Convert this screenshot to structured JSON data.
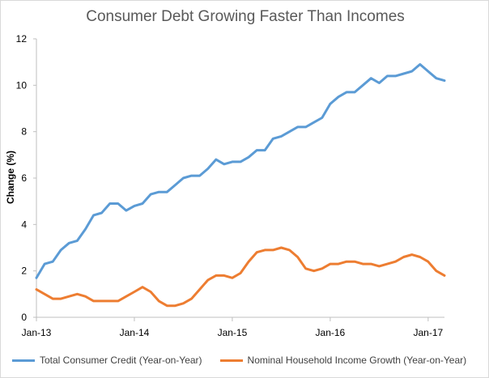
{
  "colors": {
    "credit": "#5b9bd5",
    "income": "#ed7d31",
    "axis": "#bfbfbf",
    "tick_text": "#000000"
  },
  "chart_data": {
    "type": "line",
    "title": "Consumer Debt Growing Faster Than Incomes",
    "xlabel": "",
    "ylabel": "Change (%)",
    "ylim": [
      0,
      12
    ],
    "y_ticks": [
      0,
      2,
      4,
      6,
      8,
      10,
      12
    ],
    "grid": false,
    "legend_position": "bottom",
    "x_start": "2013-01",
    "x_end": "2017-03",
    "x": [
      "2013-01",
      "2013-02",
      "2013-03",
      "2013-04",
      "2013-05",
      "2013-06",
      "2013-07",
      "2013-08",
      "2013-09",
      "2013-10",
      "2013-11",
      "2013-12",
      "2014-01",
      "2014-02",
      "2014-03",
      "2014-04",
      "2014-05",
      "2014-06",
      "2014-07",
      "2014-08",
      "2014-09",
      "2014-10",
      "2014-11",
      "2014-12",
      "2015-01",
      "2015-02",
      "2015-03",
      "2015-04",
      "2015-05",
      "2015-06",
      "2015-07",
      "2015-08",
      "2015-09",
      "2015-10",
      "2015-11",
      "2015-12",
      "2016-01",
      "2016-02",
      "2016-03",
      "2016-04",
      "2016-05",
      "2016-06",
      "2016-07",
      "2016-08",
      "2016-09",
      "2016-10",
      "2016-11",
      "2016-12",
      "2017-01",
      "2017-02",
      "2017-03"
    ],
    "x_tick_labels": [
      {
        "x": "2013-01",
        "label": "Jan-13"
      },
      {
        "x": "2014-01",
        "label": "Jan-14"
      },
      {
        "x": "2015-01",
        "label": "Jan-15"
      },
      {
        "x": "2016-01",
        "label": "Jan-16"
      },
      {
        "x": "2017-01",
        "label": "Jan-17"
      }
    ],
    "series": [
      {
        "name": "Total Consumer Credit (Year-on-Year)",
        "values": [
          1.7,
          2.3,
          2.4,
          2.9,
          3.2,
          3.3,
          3.8,
          4.4,
          4.5,
          4.9,
          4.9,
          4.6,
          4.8,
          4.9,
          5.3,
          5.4,
          5.4,
          5.7,
          6.0,
          6.1,
          6.1,
          6.4,
          6.8,
          6.6,
          6.7,
          6.7,
          6.9,
          7.2,
          7.2,
          7.7,
          7.8,
          8.0,
          8.2,
          8.2,
          8.4,
          8.6,
          9.2,
          9.5,
          9.7,
          9.7,
          10.0,
          10.3,
          10.1,
          10.4,
          10.4,
          10.5,
          10.6,
          10.9,
          10.6,
          10.3,
          10.2
        ]
      },
      {
        "name": "Nominal Household Income Growth (Year-on-Year)",
        "values": [
          1.2,
          1.0,
          0.8,
          0.8,
          0.9,
          1.0,
          0.9,
          0.7,
          0.7,
          0.7,
          0.7,
          0.9,
          1.1,
          1.3,
          1.1,
          0.7,
          0.5,
          0.5,
          0.6,
          0.8,
          1.2,
          1.6,
          1.8,
          1.8,
          1.7,
          1.9,
          2.4,
          2.8,
          2.9,
          2.9,
          3.0,
          2.9,
          2.6,
          2.1,
          2.0,
          2.1,
          2.3,
          2.3,
          2.4,
          2.4,
          2.3,
          2.3,
          2.2,
          2.3,
          2.4,
          2.6,
          2.7,
          2.6,
          2.4,
          2.0,
          1.8
        ]
      }
    ]
  }
}
